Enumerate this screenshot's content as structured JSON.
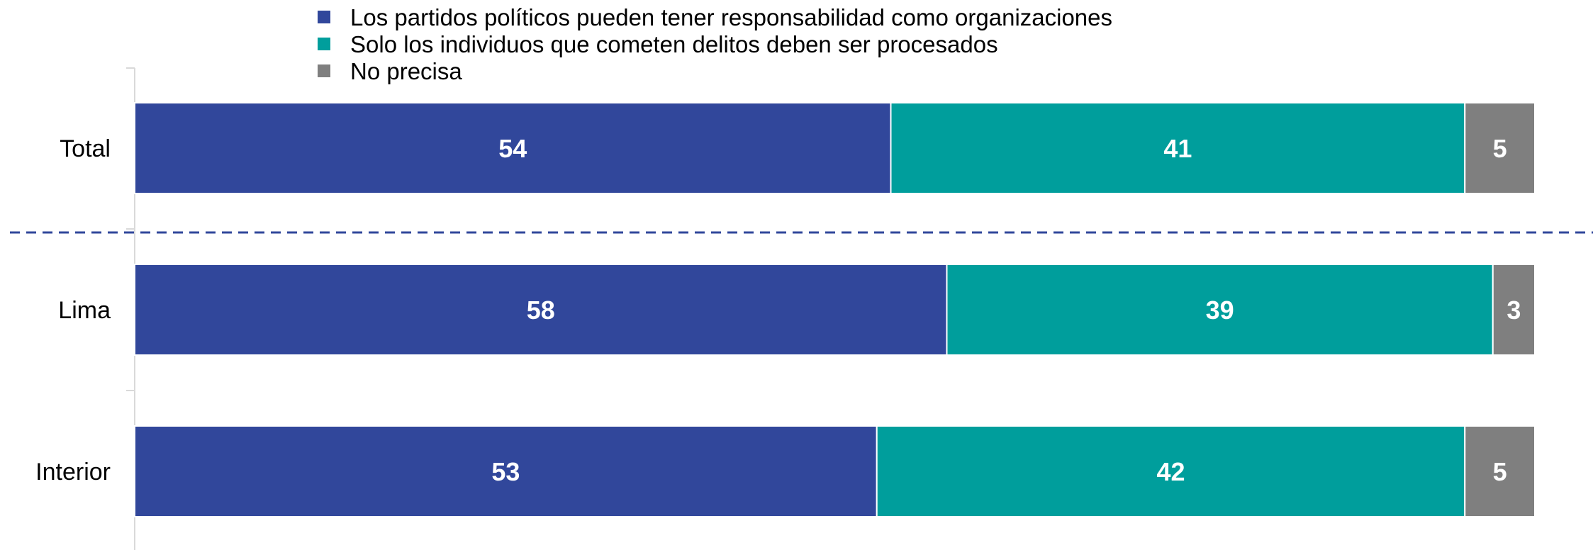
{
  "chart_data": {
    "type": "bar",
    "orientation": "horizontal",
    "stacked": true,
    "categories": [
      "Total",
      "Lima",
      "Interior"
    ],
    "series": [
      {
        "name": "Los partidos políticos pueden tener responsabilidad como organizaciones",
        "color": "#31479b",
        "values": [
          54,
          58,
          53
        ]
      },
      {
        "name": "Solo los individuos que cometen delitos deben ser procesados",
        "color": "#009e9c",
        "values": [
          41,
          39,
          42
        ]
      },
      {
        "name": "No precisa",
        "color": "#7f7f7f",
        "values": [
          5,
          3,
          5
        ]
      }
    ],
    "xlim": [
      0,
      100
    ],
    "legend_position": "top",
    "grid": false,
    "separator_color": "#31479b"
  }
}
